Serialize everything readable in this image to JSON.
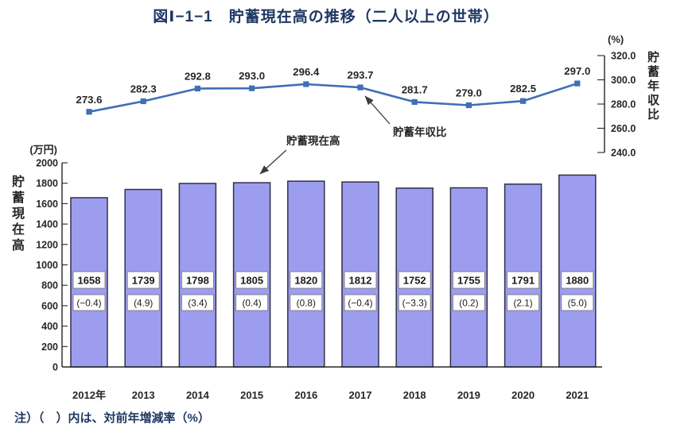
{
  "title": "図Ⅰ−1−1　貯蓄現在高の推移（二人以上の世帯）",
  "note": "注）（　）内は、対前年増減率（%）",
  "annotations": {
    "bar_series_label": "貯蓄現在高",
    "line_series_label": "貯蓄年収比"
  },
  "colors": {
    "bar_fill": "#9d9df0",
    "bar_border": "#30304a",
    "line": "#3f6fb5",
    "title_text": "#1f3864",
    "axis_text": "#262626",
    "label_box_border": "#7a7a7a",
    "arrow": "#3c3c3c"
  },
  "chart_data": {
    "type": "combo",
    "categories": [
      "2012年",
      "2013",
      "2014",
      "2015",
      "2016",
      "2017",
      "2018",
      "2019",
      "2020",
      "2021"
    ],
    "series": [
      {
        "name": "貯蓄現在高",
        "type": "bar",
        "axis": "left",
        "unit": "万円",
        "values": [
          1658,
          1739,
          1798,
          1805,
          1820,
          1812,
          1752,
          1755,
          1791,
          1880
        ],
        "yoy_change_labels": [
          "(−0.4)",
          "(4.9)",
          "(3.4)",
          "(0.4)",
          "(0.8)",
          "(−0.4)",
          "(−3.3)",
          "(0.2)",
          "(2.1)",
          "(5.0)"
        ]
      },
      {
        "name": "貯蓄年収比",
        "type": "line",
        "axis": "right",
        "unit": "%",
        "values": [
          273.6,
          282.3,
          292.8,
          293.0,
          296.4,
          293.7,
          281.7,
          279.0,
          282.5,
          297.0
        ]
      }
    ],
    "left_axis": {
      "title": "貯蓄現在高",
      "unit_label": "(万円)",
      "range": [
        0,
        2000
      ],
      "ticks": [
        0,
        200,
        400,
        600,
        800,
        1000,
        1200,
        1400,
        1600,
        1800,
        2000
      ]
    },
    "right_axis": {
      "title": "貯蓄年収比",
      "unit_label": "(%)",
      "range": [
        240,
        320
      ],
      "ticks": [
        240,
        260,
        280,
        300,
        320
      ]
    },
    "grid": false,
    "legend_position": "none"
  }
}
